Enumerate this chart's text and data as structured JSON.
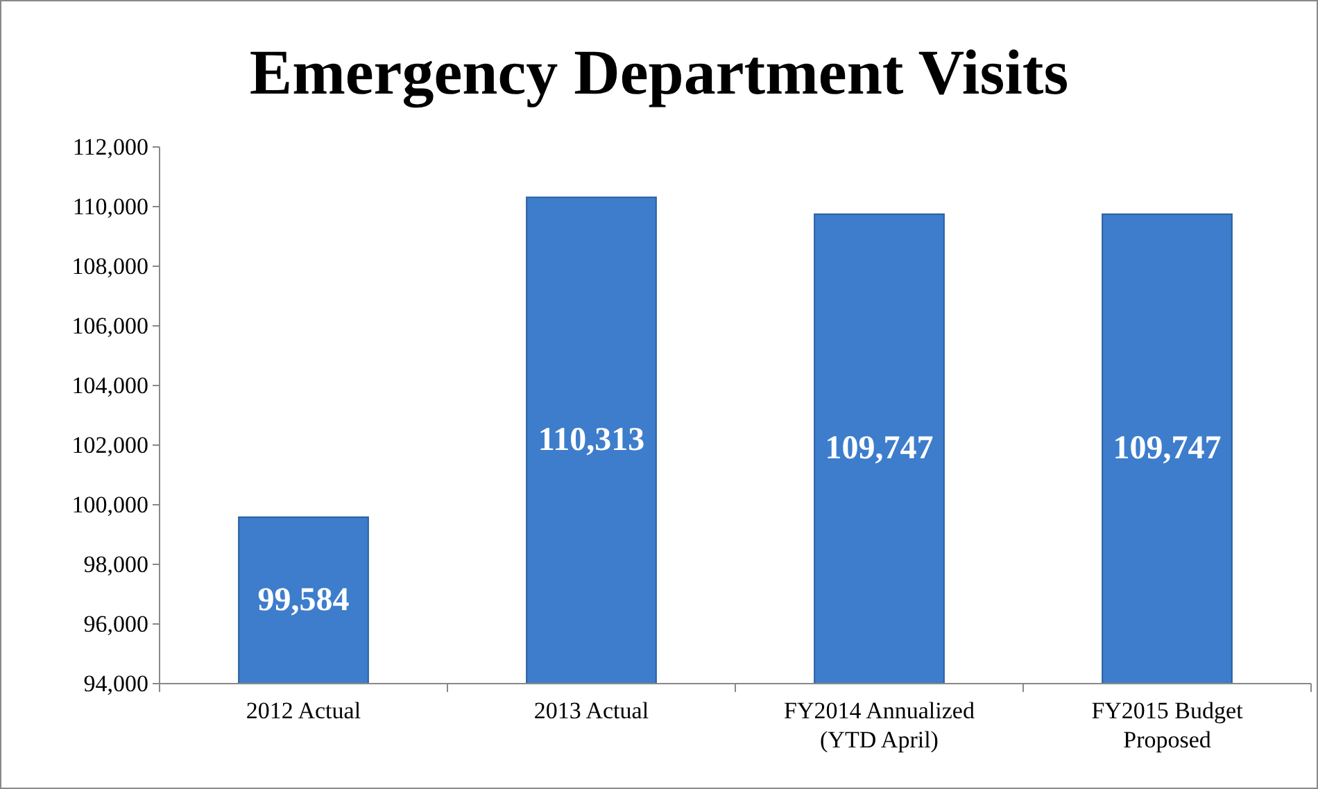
{
  "chart_data": {
    "type": "bar",
    "title": "Emergency Department Visits",
    "categories": [
      "2012 Actual",
      "2013 Actual",
      "FY2014 Annualized (YTD April)",
      "FY2015 Budget Proposed"
    ],
    "values": [
      99584,
      110313,
      109747,
      109747
    ],
    "color": "#3d7dcc",
    "ylim": [
      94000,
      112000
    ],
    "yticks": [
      {
        "value": 94000,
        "label": "94,000"
      },
      {
        "value": 96000,
        "label": "96,000"
      },
      {
        "value": 98000,
        "label": "98,000"
      },
      {
        "value": 100000,
        "label": "100,000"
      },
      {
        "value": 102000,
        "label": "102,000"
      },
      {
        "value": 104000,
        "label": "104,000"
      },
      {
        "value": 106000,
        "label": "106,000"
      },
      {
        "value": 108000,
        "label": "108,000"
      },
      {
        "value": 110000,
        "label": "110,000"
      },
      {
        "value": 112000,
        "label": "112,000"
      }
    ],
    "value_labels": [
      "99,584",
      "110,313",
      "109,747",
      "109,747"
    ]
  }
}
